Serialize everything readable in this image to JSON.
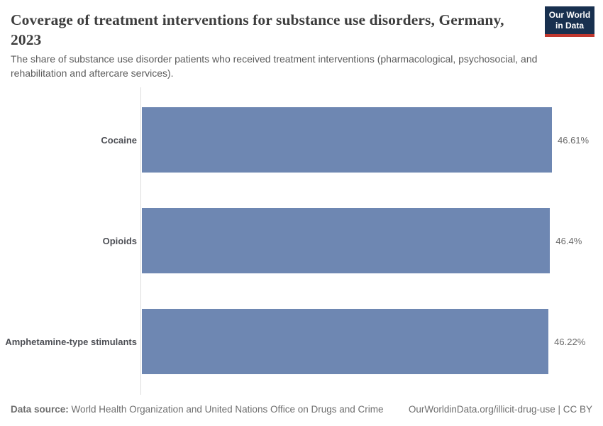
{
  "header": {
    "title": "Coverage of treatment interventions for substance use disorders, Germany, 2023",
    "subtitle": "The share of substance use disorder patients who received treatment interventions (pharmacological, psychosocial, and rehabilitation and aftercare services)."
  },
  "logo": {
    "line1": "Our World",
    "line2": "in Data"
  },
  "chart_data": {
    "type": "bar",
    "orientation": "horizontal",
    "title": "Coverage of treatment interventions for substance use disorders, Germany, 2023",
    "unit": "%",
    "categories": [
      "Cocaine",
      "Opioids",
      "Amphetamine-type stimulants"
    ],
    "values": [
      46.61,
      46.4,
      46.22
    ],
    "value_labels": [
      "46.61%",
      "46.4%",
      "46.22%"
    ],
    "xlabel": "",
    "ylabel": "",
    "xlim": [
      0,
      46.61
    ],
    "grid": false,
    "legend": false
  },
  "colors": {
    "bar": "#6e87b2",
    "logo_navy": "#18304f",
    "logo_red": "#c0372e",
    "axis_line": "#dcdcdc"
  },
  "footer": {
    "source_label": "Data source:",
    "source_text": "World Health Organization and United Nations Office on Drugs and Crime",
    "link": "OurWorldinData.org/illicit-drug-use | CC BY"
  }
}
